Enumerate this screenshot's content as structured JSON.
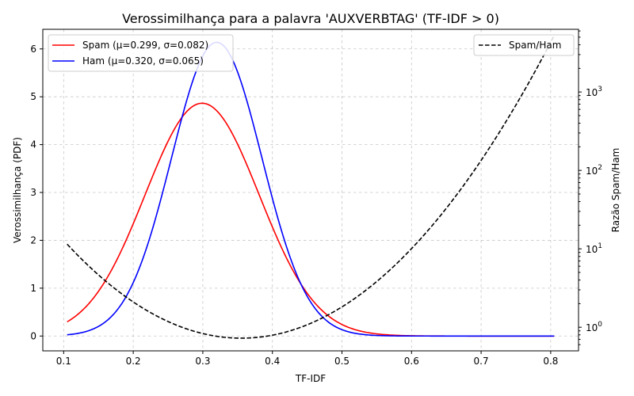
{
  "chart_data": {
    "type": "line",
    "title": "Verossimilhança para a palavra 'AUXVERBTAG' (TF-IDF > 0)",
    "xlabel": "TF-IDF",
    "ylabel": "Verossimilhança (PDF)",
    "y2label": "Razão Spam/Ham",
    "xlim": [
      0.07,
      0.84
    ],
    "ylim": [
      -0.31,
      6.41
    ],
    "y2lim_log": [
      0.5,
      6300
    ],
    "y2scale": "log",
    "grid": true,
    "x_ticks": [
      0.1,
      0.2,
      0.3,
      0.4,
      0.5,
      0.6,
      0.7,
      0.8
    ],
    "x_tick_labels": [
      "0.1",
      "0.2",
      "0.3",
      "0.4",
      "0.5",
      "0.6",
      "0.7",
      "0.8"
    ],
    "y_ticks": [
      0,
      1,
      2,
      3,
      4,
      5,
      6
    ],
    "y_tick_labels": [
      "0",
      "1",
      "2",
      "3",
      "4",
      "5",
      "6"
    ],
    "y2_major_ticks": [
      1,
      10,
      100,
      1000
    ],
    "y2_tick_bases": [
      "10",
      "10",
      "10",
      "10"
    ],
    "y2_tick_exps": [
      "0",
      "1",
      "2",
      "3"
    ],
    "x_range": [
      0.105,
      0.805
    ],
    "legend_left": {
      "placement": "upper-left",
      "entries": [
        "Spam (μ=0.299, σ=0.082)",
        "Ham (μ=0.320, σ=0.065)"
      ]
    },
    "legend_right": {
      "placement": "upper-right",
      "entries": [
        "Spam/Ham"
      ]
    },
    "series": [
      {
        "name": "Spam (μ=0.299, σ=0.082)",
        "mu": 0.299,
        "sigma": 0.082,
        "axis": "left",
        "color": "#ff0000",
        "style": "solid"
      },
      {
        "name": "Ham (μ=0.320, σ=0.065)",
        "mu": 0.32,
        "sigma": 0.065,
        "axis": "left",
        "color": "#0000ff",
        "style": "solid"
      },
      {
        "name": "Spam/Ham",
        "axis": "right",
        "color": "#000000",
        "style": "dashed",
        "definition": "Spam PDF divided by Ham PDF"
      }
    ]
  }
}
